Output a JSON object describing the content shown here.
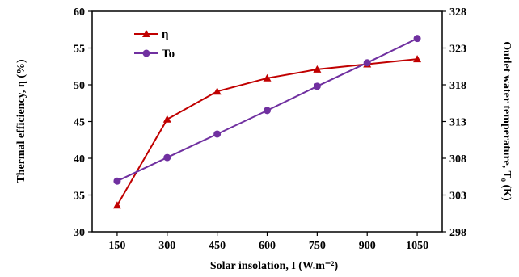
{
  "chart_data": {
    "type": "line",
    "x": [
      150,
      300,
      450,
      600,
      750,
      900,
      1050
    ],
    "xlabel": "Solar insolation, I (W.m⁻²)",
    "ylabel_left": "Thermal efficiency, η (%)",
    "ylabel_right": "Outlet water temperature, T₀ (K)",
    "ylim_left": [
      30,
      60
    ],
    "ylim_right": [
      298,
      328
    ],
    "yticks_left": [
      30,
      35,
      40,
      45,
      50,
      55,
      60
    ],
    "yticks_right": [
      298,
      303,
      308,
      313,
      318,
      323,
      328
    ],
    "grid": false,
    "legend_position": "top-left",
    "series": [
      {
        "name": "η",
        "axis": "left",
        "marker": "triangle",
        "color": "#c00000",
        "values": [
          33.6,
          45.3,
          49.1,
          50.9,
          52.1,
          52.8,
          53.5
        ]
      },
      {
        "name": "To",
        "axis": "right",
        "marker": "circle",
        "color": "#7030a0",
        "values": [
          304.9,
          308.1,
          311.3,
          314.5,
          317.8,
          321.0,
          324.3
        ]
      }
    ]
  }
}
